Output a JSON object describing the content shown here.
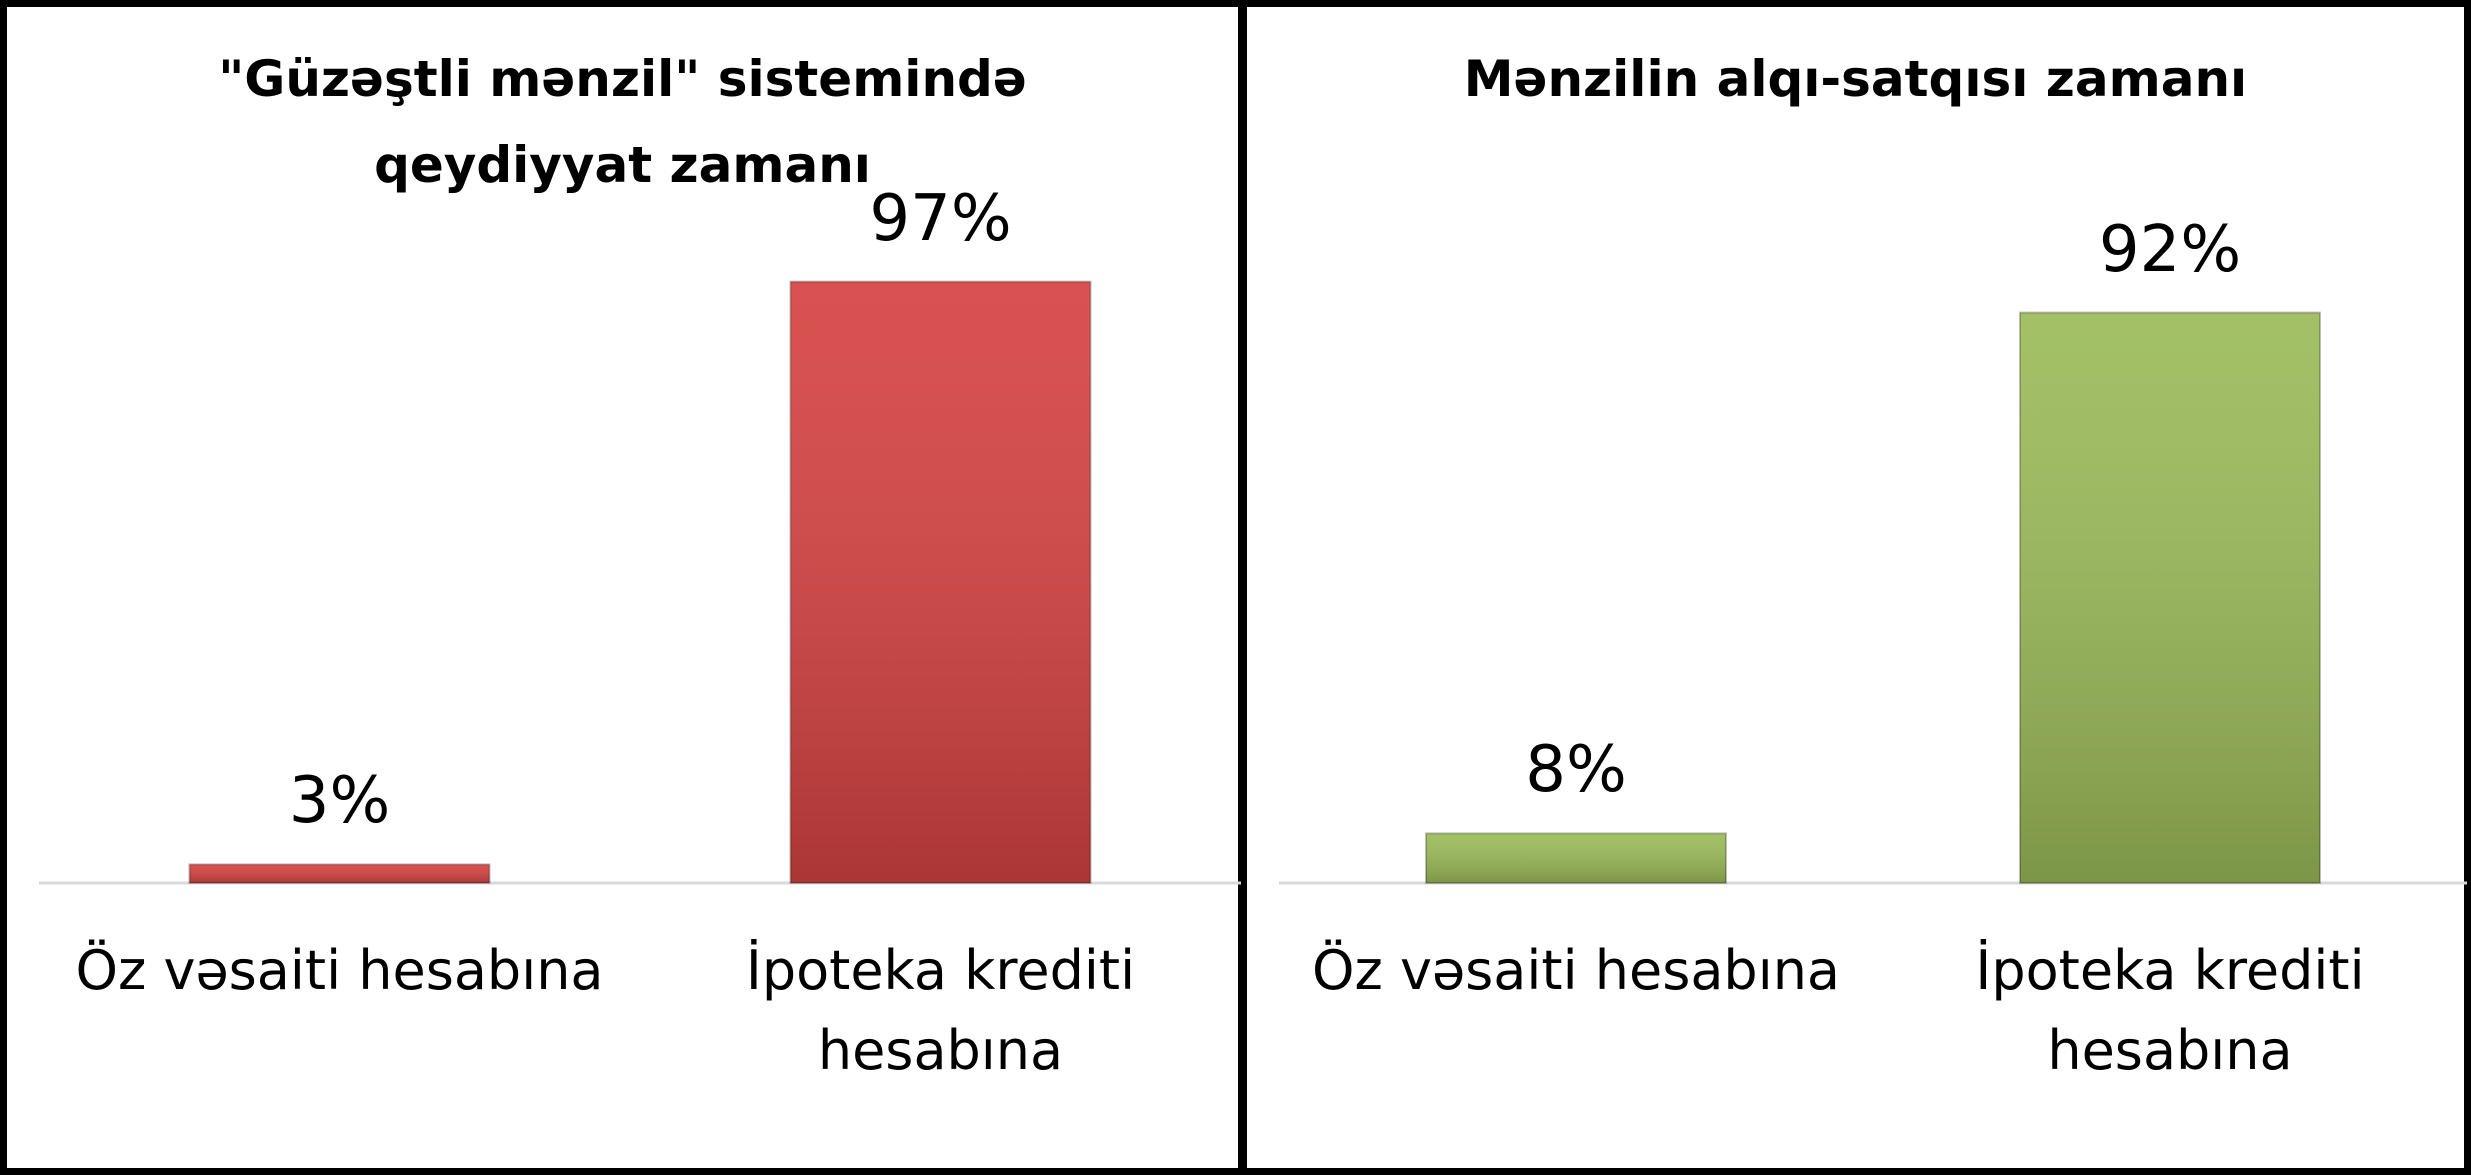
{
  "chart_data": [
    {
      "type": "bar",
      "title": "\"Güzəştli mənzil\" sistemində qeydiyyat zamanı",
      "categories": [
        "Öz vəsaiti hesabına",
        "İpoteka krediti hesabına"
      ],
      "values": [
        3,
        97
      ],
      "value_labels": [
        "3%",
        "97%"
      ],
      "color": "#d64242"
    },
    {
      "type": "bar",
      "title": "Mənzilin alqı-satqısı zamanı",
      "categories": [
        "Öz vəsaiti hesabına",
        "İpoteka krediti hesabına"
      ],
      "values": [
        8,
        92
      ],
      "value_labels": [
        "8%",
        "92%"
      ],
      "color": "#9bbb59"
    }
  ]
}
